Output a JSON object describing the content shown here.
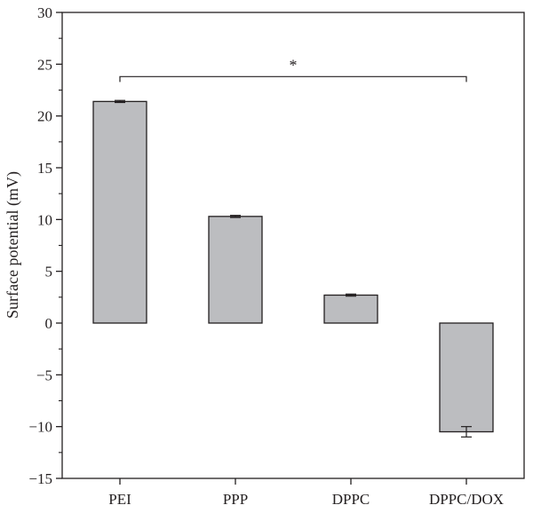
{
  "chart_data": {
    "type": "bar",
    "title": "",
    "xlabel": "",
    "ylabel": "Surface potential (mV)",
    "categories": [
      "PEI",
      "PPP",
      "DPPC",
      "DPPC/DOX"
    ],
    "values": [
      21.4,
      10.3,
      2.7,
      -10.5
    ],
    "errors": [
      0.1,
      0.1,
      0.1,
      0.5
    ],
    "ylim": [
      -15,
      30
    ],
    "yticks": [
      -15,
      -10,
      -5,
      0,
      5,
      10,
      15,
      20,
      25,
      30
    ],
    "ytick_labels": [
      "−15",
      "−10",
      "−5",
      "0",
      "5",
      "10",
      "15",
      "20",
      "25",
      "30"
    ],
    "grid": false,
    "bar_color": "#bcbdc0",
    "edge_color": "#231f20",
    "significance": {
      "from": "PEI",
      "to": "DPPC/DOX",
      "y": 23.8,
      "label": "*"
    }
  }
}
